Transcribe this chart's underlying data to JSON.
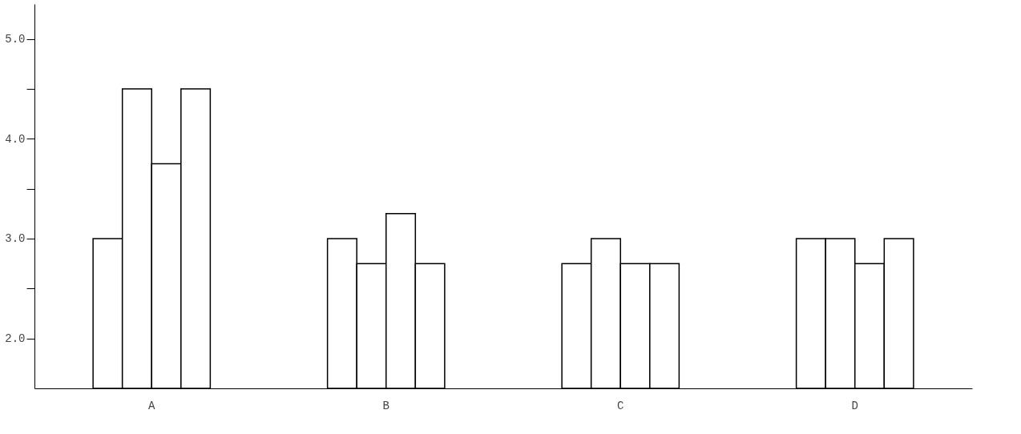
{
  "chart_data": {
    "type": "bar",
    "categories": [
      "A",
      "B",
      "C",
      "D"
    ],
    "series": [
      {
        "color": "#ffffff",
        "values": [
          3.0,
          3.0,
          2.75,
          3.0
        ]
      },
      {
        "color": "#ffffff",
        "values": [
          4.5,
          2.75,
          3.0,
          3.0
        ]
      },
      {
        "color": "#ffffff",
        "values": [
          3.75,
          3.25,
          2.75,
          2.75
        ]
      },
      {
        "color": "#ffffff",
        "values": [
          4.5,
          2.75,
          2.75,
          3.0
        ]
      }
    ],
    "ylim": [
      1.5,
      5.35
    ],
    "yticks": [
      {
        "value": 2,
        "label": "2.0"
      },
      {
        "value": 2.5,
        "label": null
      },
      {
        "value": 3,
        "label": "3.0"
      },
      {
        "value": 3.5,
        "label": null
      },
      {
        "value": 4,
        "label": "4.0"
      },
      {
        "value": 4.5,
        "label": null
      },
      {
        "value": 5,
        "label": "5.0"
      }
    ],
    "grid": false,
    "legend": false
  }
}
